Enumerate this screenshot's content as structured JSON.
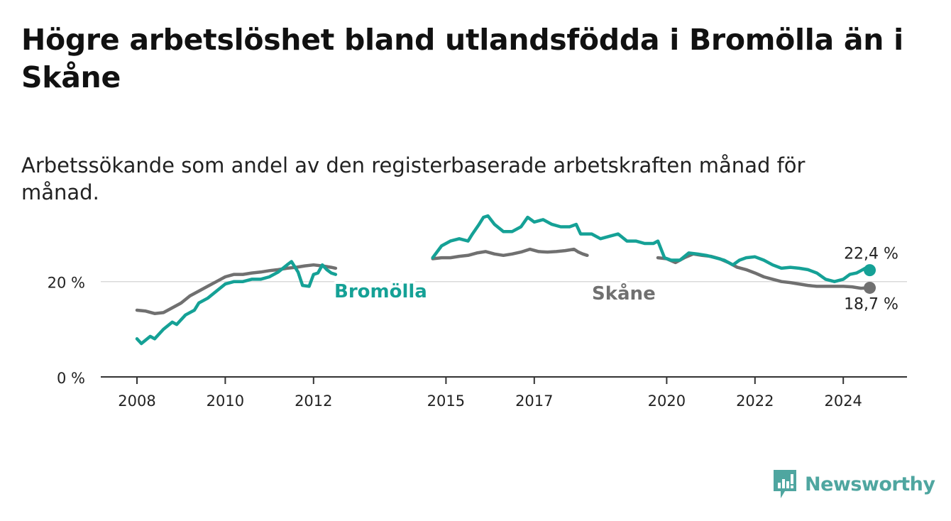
{
  "header": {
    "title": "Högre arbetslöshet bland utlandsfödda i Bromölla än i Skåne",
    "subtitle": "Arbetssökande som andel av den registerbaserade arbetskraften månad för månad."
  },
  "brand": {
    "name": "Newsworthy",
    "icon": "newsworthy-logo-icon",
    "color": "#4fa6a0"
  },
  "chart_data": {
    "type": "line",
    "title": "Högre arbetslöshet bland utlandsfödda i Bromölla än i Skåne",
    "subtitle": "Arbetssökande som andel av den registerbaserade arbetskraften månad för månad.",
    "xlabel": "",
    "ylabel": "",
    "xlim": [
      2008,
      2024.6
    ],
    "ylim": [
      0,
      35
    ],
    "x_ticks": [
      2008,
      2010,
      2012,
      2015,
      2017,
      2020,
      2022,
      2024
    ],
    "x_tick_labels": [
      "2008",
      "2010",
      "2012",
      "2015",
      "2017",
      "2020",
      "2022",
      "2024"
    ],
    "y_ticks": [
      0,
      20
    ],
    "y_tick_labels": [
      "0 %",
      "20 %"
    ],
    "grid": "horizontal",
    "gap": [
      2012.5,
      2014.7
    ],
    "series": [
      {
        "name": "Bromölla",
        "label": "Bromölla",
        "color": "#15a196",
        "end_label": "22,4 %",
        "end_value": 22.4,
        "points": [
          [
            2008.0,
            8
          ],
          [
            2008.1,
            7
          ],
          [
            2008.3,
            8.5
          ],
          [
            2008.4,
            8
          ],
          [
            2008.6,
            10
          ],
          [
            2008.8,
            11.5
          ],
          [
            2008.9,
            11
          ],
          [
            2009.1,
            13
          ],
          [
            2009.3,
            14
          ],
          [
            2009.4,
            15.5
          ],
          [
            2009.6,
            16.5
          ],
          [
            2009.8,
            18
          ],
          [
            2010.0,
            19.5
          ],
          [
            2010.2,
            20
          ],
          [
            2010.4,
            20
          ],
          [
            2010.6,
            20.5
          ],
          [
            2010.8,
            20.5
          ],
          [
            2011.0,
            21
          ],
          [
            2011.2,
            22
          ],
          [
            2011.4,
            23.5
          ],
          [
            2011.5,
            24.2
          ],
          [
            2011.65,
            22
          ],
          [
            2011.75,
            19.2
          ],
          [
            2011.9,
            19
          ],
          [
            2012.0,
            21.5
          ],
          [
            2012.1,
            21.8
          ],
          [
            2012.2,
            23.5
          ],
          [
            2012.3,
            22.5
          ],
          [
            2012.4,
            21.8
          ],
          [
            2012.5,
            21.5
          ],
          [
            2014.7,
            25
          ],
          [
            2014.9,
            27.5
          ],
          [
            2015.1,
            28.5
          ],
          [
            2015.3,
            29
          ],
          [
            2015.5,
            28.5
          ],
          [
            2015.6,
            30
          ],
          [
            2015.75,
            32
          ],
          [
            2015.85,
            33.5
          ],
          [
            2015.95,
            33.8
          ],
          [
            2016.1,
            32
          ],
          [
            2016.3,
            30.5
          ],
          [
            2016.5,
            30.5
          ],
          [
            2016.7,
            31.5
          ],
          [
            2016.85,
            33.5
          ],
          [
            2017.0,
            32.5
          ],
          [
            2017.2,
            33
          ],
          [
            2017.4,
            32
          ],
          [
            2017.6,
            31.5
          ],
          [
            2017.8,
            31.5
          ],
          [
            2017.95,
            32
          ],
          [
            2018.05,
            30
          ],
          [
            2018.3,
            30
          ],
          [
            2018.5,
            29
          ],
          [
            2018.7,
            29.5
          ],
          [
            2018.9,
            30
          ],
          [
            2019.1,
            28.5
          ],
          [
            2019.3,
            28.5
          ],
          [
            2019.5,
            28
          ],
          [
            2019.7,
            28
          ],
          [
            2019.8,
            28.5
          ],
          [
            2019.95,
            25
          ],
          [
            2020.1,
            24.5
          ],
          [
            2020.3,
            24.5
          ],
          [
            2020.5,
            26
          ],
          [
            2020.7,
            25.8
          ],
          [
            2020.9,
            25.5
          ],
          [
            2021.1,
            25
          ],
          [
            2021.3,
            24.5
          ],
          [
            2021.5,
            23.5
          ],
          [
            2021.65,
            24.5
          ],
          [
            2021.8,
            25
          ],
          [
            2022.0,
            25.2
          ],
          [
            2022.2,
            24.5
          ],
          [
            2022.4,
            23.5
          ],
          [
            2022.6,
            22.8
          ],
          [
            2022.8,
            23
          ],
          [
            2023.0,
            22.8
          ],
          [
            2023.2,
            22.5
          ],
          [
            2023.4,
            21.8
          ],
          [
            2023.6,
            20.5
          ],
          [
            2023.8,
            20
          ],
          [
            2024.0,
            20.5
          ],
          [
            2024.15,
            21.5
          ],
          [
            2024.3,
            21.8
          ],
          [
            2024.4,
            22.3
          ],
          [
            2024.5,
            22.8
          ],
          [
            2024.6,
            22.4
          ]
        ]
      },
      {
        "name": "Skåne",
        "label": "Skåne",
        "color": "#707070",
        "end_label": "18,7 %",
        "end_value": 18.7,
        "points": [
          [
            2008.0,
            14
          ],
          [
            2008.2,
            13.8
          ],
          [
            2008.4,
            13.3
          ],
          [
            2008.6,
            13.5
          ],
          [
            2008.8,
            14.5
          ],
          [
            2009.0,
            15.5
          ],
          [
            2009.2,
            17
          ],
          [
            2009.4,
            18
          ],
          [
            2009.6,
            19
          ],
          [
            2009.8,
            20
          ],
          [
            2010.0,
            21
          ],
          [
            2010.2,
            21.5
          ],
          [
            2010.4,
            21.5
          ],
          [
            2010.6,
            21.8
          ],
          [
            2010.8,
            22
          ],
          [
            2011.0,
            22.3
          ],
          [
            2011.2,
            22.5
          ],
          [
            2011.4,
            22.8
          ],
          [
            2011.6,
            23
          ],
          [
            2011.8,
            23.3
          ],
          [
            2012.0,
            23.5
          ],
          [
            2012.2,
            23.3
          ],
          [
            2012.4,
            23
          ],
          [
            2012.5,
            22.8
          ],
          [
            2014.7,
            24.8
          ],
          [
            2014.9,
            25
          ],
          [
            2015.1,
            25
          ],
          [
            2015.3,
            25.3
          ],
          [
            2015.5,
            25.5
          ],
          [
            2015.7,
            26
          ],
          [
            2015.9,
            26.3
          ],
          [
            2016.1,
            25.8
          ],
          [
            2016.3,
            25.5
          ],
          [
            2016.5,
            25.8
          ],
          [
            2016.7,
            26.2
          ],
          [
            2016.9,
            26.8
          ],
          [
            2017.1,
            26.3
          ],
          [
            2017.3,
            26.2
          ],
          [
            2017.5,
            26.3
          ],
          [
            2017.7,
            26.5
          ],
          [
            2017.9,
            26.8
          ],
          [
            2018.0,
            26.2
          ],
          [
            2018.1,
            25.8
          ],
          [
            2018.2,
            25.5
          ],
          [
            2019.8,
            25
          ],
          [
            2020.0,
            24.8
          ],
          [
            2020.2,
            24
          ],
          [
            2020.4,
            25
          ],
          [
            2020.6,
            25.8
          ],
          [
            2020.8,
            25.5
          ],
          [
            2021.0,
            25.3
          ],
          [
            2021.2,
            24.8
          ],
          [
            2021.4,
            24
          ],
          [
            2021.6,
            23
          ],
          [
            2021.8,
            22.5
          ],
          [
            2022.0,
            21.8
          ],
          [
            2022.2,
            21
          ],
          [
            2022.4,
            20.5
          ],
          [
            2022.6,
            20
          ],
          [
            2022.8,
            19.8
          ],
          [
            2023.0,
            19.5
          ],
          [
            2023.2,
            19.2
          ],
          [
            2023.4,
            19
          ],
          [
            2023.6,
            19
          ],
          [
            2023.8,
            19
          ],
          [
            2024.0,
            19
          ],
          [
            2024.2,
            18.9
          ],
          [
            2024.4,
            18.6
          ],
          [
            2024.6,
            18.7
          ]
        ]
      }
    ]
  }
}
